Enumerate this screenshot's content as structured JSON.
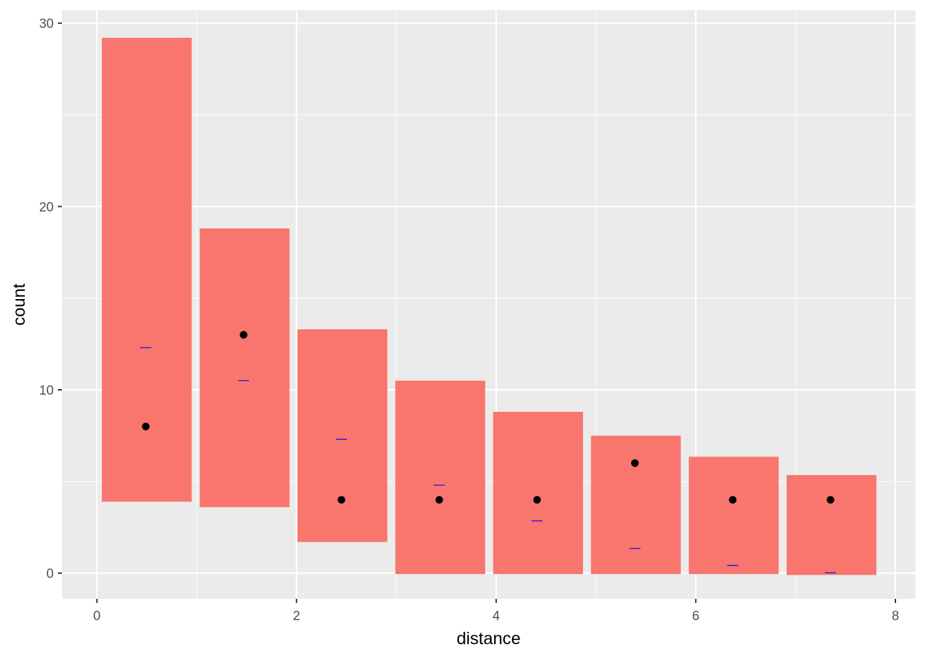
{
  "chart_data": {
    "type": "bar",
    "title": "",
    "xlabel": "distance",
    "ylabel": "count",
    "xlim": [
      -0.35,
      8.2
    ],
    "ylim": [
      -1.4,
      30.7
    ],
    "x_ticks": [
      0,
      2,
      4,
      6,
      8
    ],
    "x_minor_ticks": [
      1,
      3,
      5,
      7
    ],
    "y_ticks": [
      0,
      10,
      20,
      30
    ],
    "y_minor_ticks": [
      5,
      15,
      25
    ],
    "grid": true,
    "colors": {
      "panel_background": "#ebebeb",
      "grid_line": "#ffffff",
      "bar_fill": "#f8766d",
      "point": "#000000",
      "mean_marker": "#0000ff"
    },
    "series": [
      {
        "type": "range-bar",
        "values": [
          {
            "x_start": 0.05,
            "x_end": 0.95,
            "low": 3.9,
            "high": 29.2
          },
          {
            "x_start": 1.03,
            "x_end": 1.93,
            "low": 3.6,
            "high": 18.8
          },
          {
            "x_start": 2.01,
            "x_end": 2.91,
            "low": 1.7,
            "high": 13.3
          },
          {
            "x_start": 2.99,
            "x_end": 3.89,
            "low": -0.05,
            "high": 10.5
          },
          {
            "x_start": 3.97,
            "x_end": 4.87,
            "low": -0.05,
            "high": 8.8
          },
          {
            "x_start": 4.95,
            "x_end": 5.85,
            "low": -0.05,
            "high": 7.5
          },
          {
            "x_start": 5.93,
            "x_end": 6.83,
            "low": -0.05,
            "high": 6.35
          },
          {
            "x_start": 6.91,
            "x_end": 7.81,
            "low": -0.1,
            "high": 5.35
          }
        ]
      },
      {
        "type": "point",
        "values": [
          {
            "x": 0.49,
            "y": 8
          },
          {
            "x": 1.47,
            "y": 13
          },
          {
            "x": 2.45,
            "y": 4
          },
          {
            "x": 3.43,
            "y": 4
          },
          {
            "x": 4.41,
            "y": 4
          },
          {
            "x": 5.39,
            "y": 6
          },
          {
            "x": 6.37,
            "y": 4
          },
          {
            "x": 7.35,
            "y": 4
          }
        ]
      },
      {
        "type": "tick",
        "values": [
          {
            "x": 0.49,
            "y": 12.3
          },
          {
            "x": 1.47,
            "y": 10.5
          },
          {
            "x": 2.45,
            "y": 7.3
          },
          {
            "x": 3.43,
            "y": 4.8
          },
          {
            "x": 4.41,
            "y": 2.85
          },
          {
            "x": 5.39,
            "y": 1.35
          },
          {
            "x": 6.37,
            "y": 0.42
          },
          {
            "x": 7.35,
            "y": 0.02
          }
        ]
      }
    ]
  }
}
